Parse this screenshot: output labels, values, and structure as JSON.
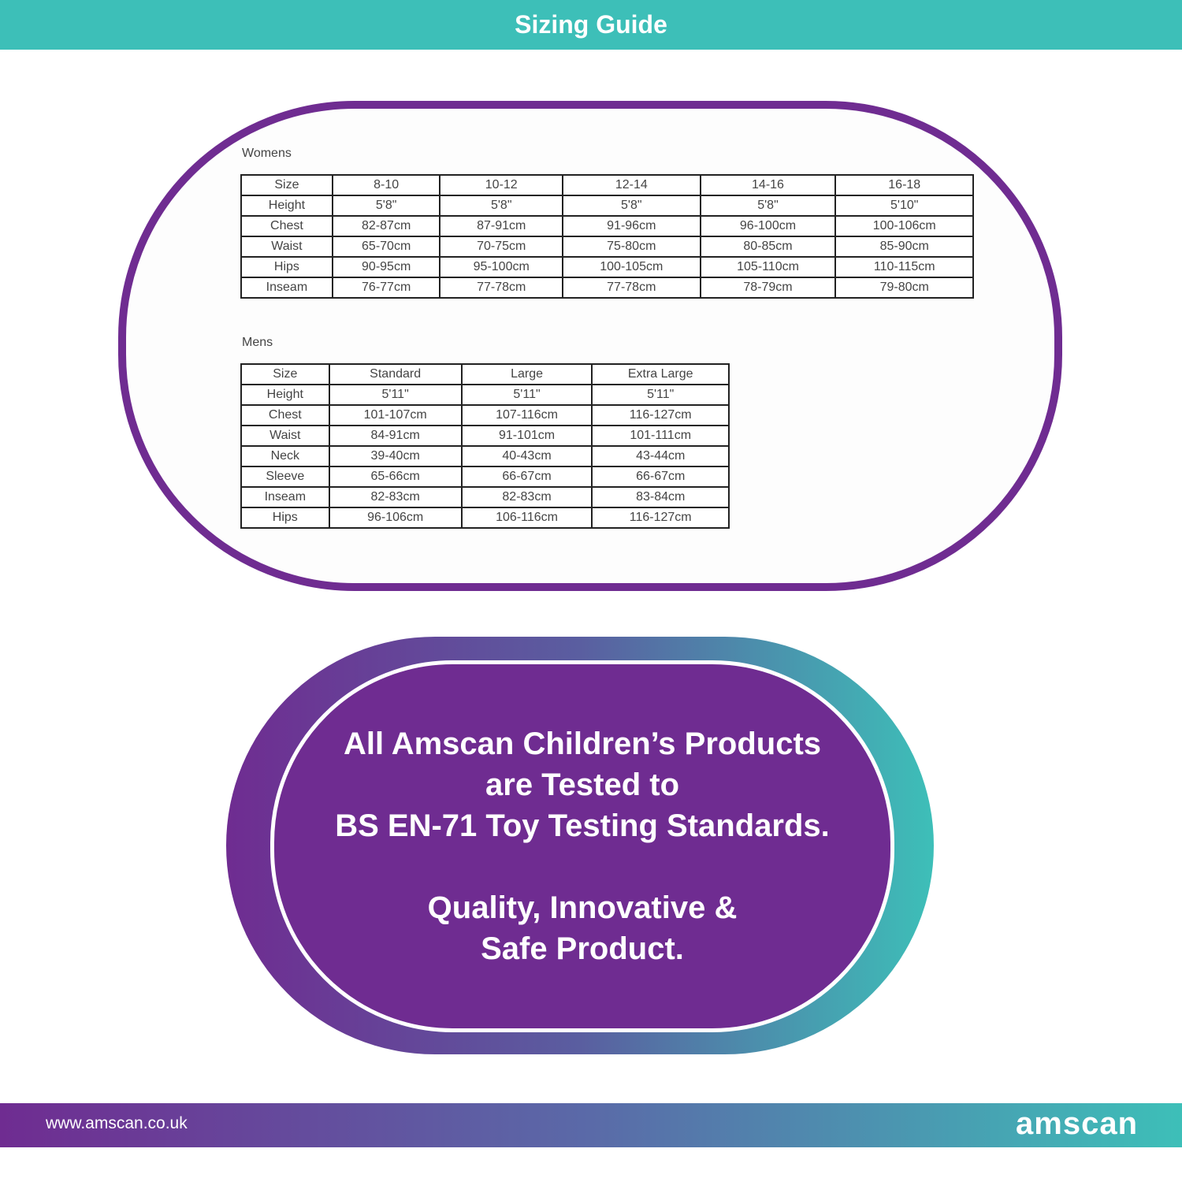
{
  "header": {
    "title": "Sizing Guide"
  },
  "womens": {
    "label": "Womens",
    "rows": [
      [
        "Size",
        "8-10",
        "10-12",
        "12-14",
        "14-16",
        "16-18"
      ],
      [
        "Height",
        "5'8\"",
        "5'8\"",
        "5'8\"",
        "5'8\"",
        "5'10\""
      ],
      [
        "Chest",
        "82-87cm",
        "87-91cm",
        "91-96cm",
        "96-100cm",
        "100-106cm"
      ],
      [
        "Waist",
        "65-70cm",
        "70-75cm",
        "75-80cm",
        "80-85cm",
        "85-90cm"
      ],
      [
        "Hips",
        "90-95cm",
        "95-100cm",
        "100-105cm",
        "105-110cm",
        "110-115cm"
      ],
      [
        "Inseam",
        "76-77cm",
        "77-78cm",
        "77-78cm",
        "78-79cm",
        "79-80cm"
      ]
    ]
  },
  "mens": {
    "label": "Mens",
    "rows": [
      [
        "Size",
        "Standard",
        "Large",
        "Extra Large"
      ],
      [
        "Height",
        "5'11\"",
        "5'11\"",
        "5'11\""
      ],
      [
        "Chest",
        "101-107cm",
        "107-116cm",
        "116-127cm"
      ],
      [
        "Waist",
        "84-91cm",
        "91-101cm",
        "101-111cm"
      ],
      [
        "Neck",
        "39-40cm",
        "40-43cm",
        "43-44cm"
      ],
      [
        "Sleeve",
        "65-66cm",
        "66-67cm",
        "66-67cm"
      ],
      [
        "Inseam",
        "82-83cm",
        "82-83cm",
        "83-84cm"
      ],
      [
        "Hips",
        "96-106cm",
        "106-116cm",
        "116-127cm"
      ]
    ]
  },
  "badge": {
    "line1": "All Amscan Children’s Products",
    "line2": "are Tested to",
    "line3": "BS EN-71 Toy Testing Standards.",
    "line4": "Quality, Innovative &",
    "line5": "Safe Product."
  },
  "footer": {
    "url": "www.amscan.co.uk",
    "logo": "amscan"
  },
  "colors": {
    "teal": "#3dbfb8",
    "purple": "#6f2c91"
  }
}
